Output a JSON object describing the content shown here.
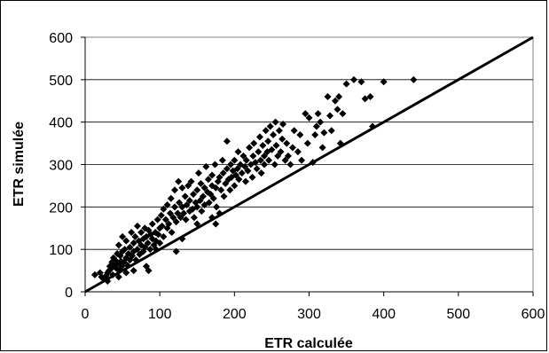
{
  "chart_data": {
    "type": "scatter",
    "title": "",
    "xlabel": "ETR calculée",
    "ylabel": "ETR simulée",
    "xlim": [
      0,
      600
    ],
    "ylim": [
      0,
      600
    ],
    "x_ticks": [
      "0",
      "100",
      "200",
      "300",
      "400",
      "500",
      "600"
    ],
    "y_ticks": [
      "0",
      "100",
      "200",
      "300",
      "400",
      "500",
      "600"
    ],
    "grid": "horizontal",
    "legend": "none",
    "marker": "diamond",
    "marker_color": "#000000",
    "reference_line": {
      "label": "",
      "x": [
        0,
        600
      ],
      "y": [
        0,
        600
      ]
    },
    "series": [
      {
        "points": [
          [
            13,
            40
          ],
          [
            20,
            45
          ],
          [
            25,
            30
          ],
          [
            28,
            38
          ],
          [
            30,
            45
          ],
          [
            32,
            50
          ],
          [
            33,
            60
          ],
          [
            35,
            55
          ],
          [
            36,
            70
          ],
          [
            37,
            40
          ],
          [
            38,
            80
          ],
          [
            40,
            62
          ],
          [
            40,
            75
          ],
          [
            42,
            55
          ],
          [
            43,
            90
          ],
          [
            44,
            68
          ],
          [
            45,
            110
          ],
          [
            46,
            50
          ],
          [
            47,
            85
          ],
          [
            48,
            72
          ],
          [
            49,
            60
          ],
          [
            50,
            95
          ],
          [
            50,
            130
          ],
          [
            52,
            70
          ],
          [
            53,
            100
          ],
          [
            55,
            80
          ],
          [
            55,
            120
          ],
          [
            57,
            62
          ],
          [
            58,
            90
          ],
          [
            60,
            105
          ],
          [
            60,
            75
          ],
          [
            62,
            140
          ],
          [
            63,
            85
          ],
          [
            65,
            115
          ],
          [
            65,
            95
          ],
          [
            67,
            130
          ],
          [
            68,
            75
          ],
          [
            70,
            155
          ],
          [
            70,
            100
          ],
          [
            72,
            120
          ],
          [
            73,
            88
          ],
          [
            75,
            140
          ],
          [
            75,
            110
          ],
          [
            78,
            95
          ],
          [
            78,
            125
          ],
          [
            80,
            150
          ],
          [
            80,
            105
          ],
          [
            82,
            60
          ],
          [
            82,
            130
          ],
          [
            84,
            115
          ],
          [
            85,
            50
          ],
          [
            85,
            145
          ],
          [
            87,
            100
          ],
          [
            88,
            135
          ],
          [
            90,
            125
          ],
          [
            90,
            160
          ],
          [
            92,
            110
          ],
          [
            94,
            140
          ],
          [
            95,
            120
          ],
          [
            97,
            170
          ],
          [
            98,
            135
          ],
          [
            100,
            150
          ],
          [
            100,
            115
          ],
          [
            102,
            180
          ],
          [
            103,
            155
          ],
          [
            105,
            195
          ],
          [
            105,
            130
          ],
          [
            108,
            170
          ],
          [
            110,
            205
          ],
          [
            110,
            150
          ],
          [
            112,
            160
          ],
          [
            114,
            185
          ],
          [
            115,
            220
          ],
          [
            116,
            140
          ],
          [
            118,
            175
          ],
          [
            120,
            200
          ],
          [
            120,
            240
          ],
          [
            122,
            165
          ],
          [
            122,
            95
          ],
          [
            124,
            185
          ],
          [
            125,
            260
          ],
          [
            126,
            210
          ],
          [
            128,
            175
          ],
          [
            130,
            200
          ],
          [
            130,
            245
          ],
          [
            132,
            185
          ],
          [
            134,
            225
          ],
          [
            135,
            170
          ],
          [
            136,
            205
          ],
          [
            138,
            250
          ],
          [
            140,
            190
          ],
          [
            140,
            215
          ],
          [
            142,
            260
          ],
          [
            144,
            195
          ],
          [
            145,
            230
          ],
          [
            146,
            175
          ],
          [
            148,
            210
          ],
          [
            150,
            240
          ],
          [
            150,
            200
          ],
          [
            152,
            280
          ],
          [
            154,
            215
          ],
          [
            155,
            255
          ],
          [
            156,
            190
          ],
          [
            158,
            225
          ],
          [
            160,
            245
          ],
          [
            160,
            205
          ],
          [
            162,
            295
          ],
          [
            164,
            235
          ],
          [
            165,
            265
          ],
          [
            166,
            210
          ],
          [
            168,
            230
          ],
          [
            170,
            250
          ],
          [
            170,
            275
          ],
          [
            172,
            220
          ],
          [
            174,
            300
          ],
          [
            175,
            245
          ],
          [
            176,
            200
          ],
          [
            178,
            260
          ],
          [
            180,
            270
          ],
          [
            180,
            185
          ],
          [
            182,
            240
          ],
          [
            184,
            310
          ],
          [
            185,
            280
          ],
          [
            186,
            225
          ],
          [
            188,
            255
          ],
          [
            190,
            355
          ],
          [
            190,
            290
          ],
          [
            192,
            265
          ],
          [
            194,
            240
          ],
          [
            195,
            300
          ],
          [
            196,
            270
          ],
          [
            198,
            285
          ],
          [
            200,
            310
          ],
          [
            200,
            250
          ],
          [
            202,
            275
          ],
          [
            204,
            290
          ],
          [
            205,
            330
          ],
          [
            206,
            265
          ],
          [
            208,
            300
          ],
          [
            210,
            280
          ],
          [
            212,
            320
          ],
          [
            214,
            295
          ],
          [
            215,
            260
          ],
          [
            216,
            310
          ],
          [
            218,
            285
          ],
          [
            220,
            340
          ],
          [
            222,
            300
          ],
          [
            224,
            270
          ],
          [
            225,
            320
          ],
          [
            226,
            350
          ],
          [
            228,
            305
          ],
          [
            230,
            290
          ],
          [
            232,
            330
          ],
          [
            234,
            365
          ],
          [
            235,
            310
          ],
          [
            236,
            280
          ],
          [
            238,
            345
          ],
          [
            240,
            320
          ],
          [
            240,
            300
          ],
          [
            242,
            380
          ],
          [
            244,
            330
          ],
          [
            245,
            355
          ],
          [
            246,
            310
          ],
          [
            248,
            390
          ],
          [
            250,
            335
          ],
          [
            252,
            370
          ],
          [
            254,
            300
          ],
          [
            255,
            400
          ],
          [
            256,
            345
          ],
          [
            258,
            320
          ],
          [
            260,
            380
          ],
          [
            262,
            330
          ],
          [
            264,
            360
          ],
          [
            265,
            395
          ],
          [
            268,
            310
          ],
          [
            270,
            350
          ],
          [
            272,
            320
          ],
          [
            275,
            300
          ],
          [
            278,
            340
          ],
          [
            280,
            380
          ],
          [
            285,
            330
          ],
          [
            288,
            370
          ],
          [
            290,
            310
          ],
          [
            295,
            420
          ],
          [
            298,
            350
          ],
          [
            300,
            410
          ],
          [
            305,
            305
          ],
          [
            308,
            370
          ],
          [
            310,
            390
          ],
          [
            312,
            420
          ],
          [
            315,
            400
          ],
          [
            318,
            340
          ],
          [
            320,
            375
          ],
          [
            325,
            460
          ],
          [
            328,
            415
          ],
          [
            330,
            380
          ],
          [
            335,
            450
          ],
          [
            338,
            430
          ],
          [
            340,
            460
          ],
          [
            342,
            350
          ],
          [
            345,
            420
          ],
          [
            350,
            490
          ],
          [
            360,
            500
          ],
          [
            370,
            495
          ],
          [
            375,
            455
          ],
          [
            382,
            460
          ],
          [
            385,
            390
          ],
          [
            400,
            495
          ],
          [
            440,
            500
          ],
          [
            170,
            175
          ],
          [
            175,
            160
          ],
          [
            130,
            125
          ],
          [
            55,
            45
          ],
          [
            65,
            50
          ],
          [
            45,
            35
          ],
          [
            30,
            25
          ],
          [
            22,
            35
          ],
          [
            95,
            100
          ],
          [
            150,
            160
          ]
        ]
      }
    ]
  }
}
